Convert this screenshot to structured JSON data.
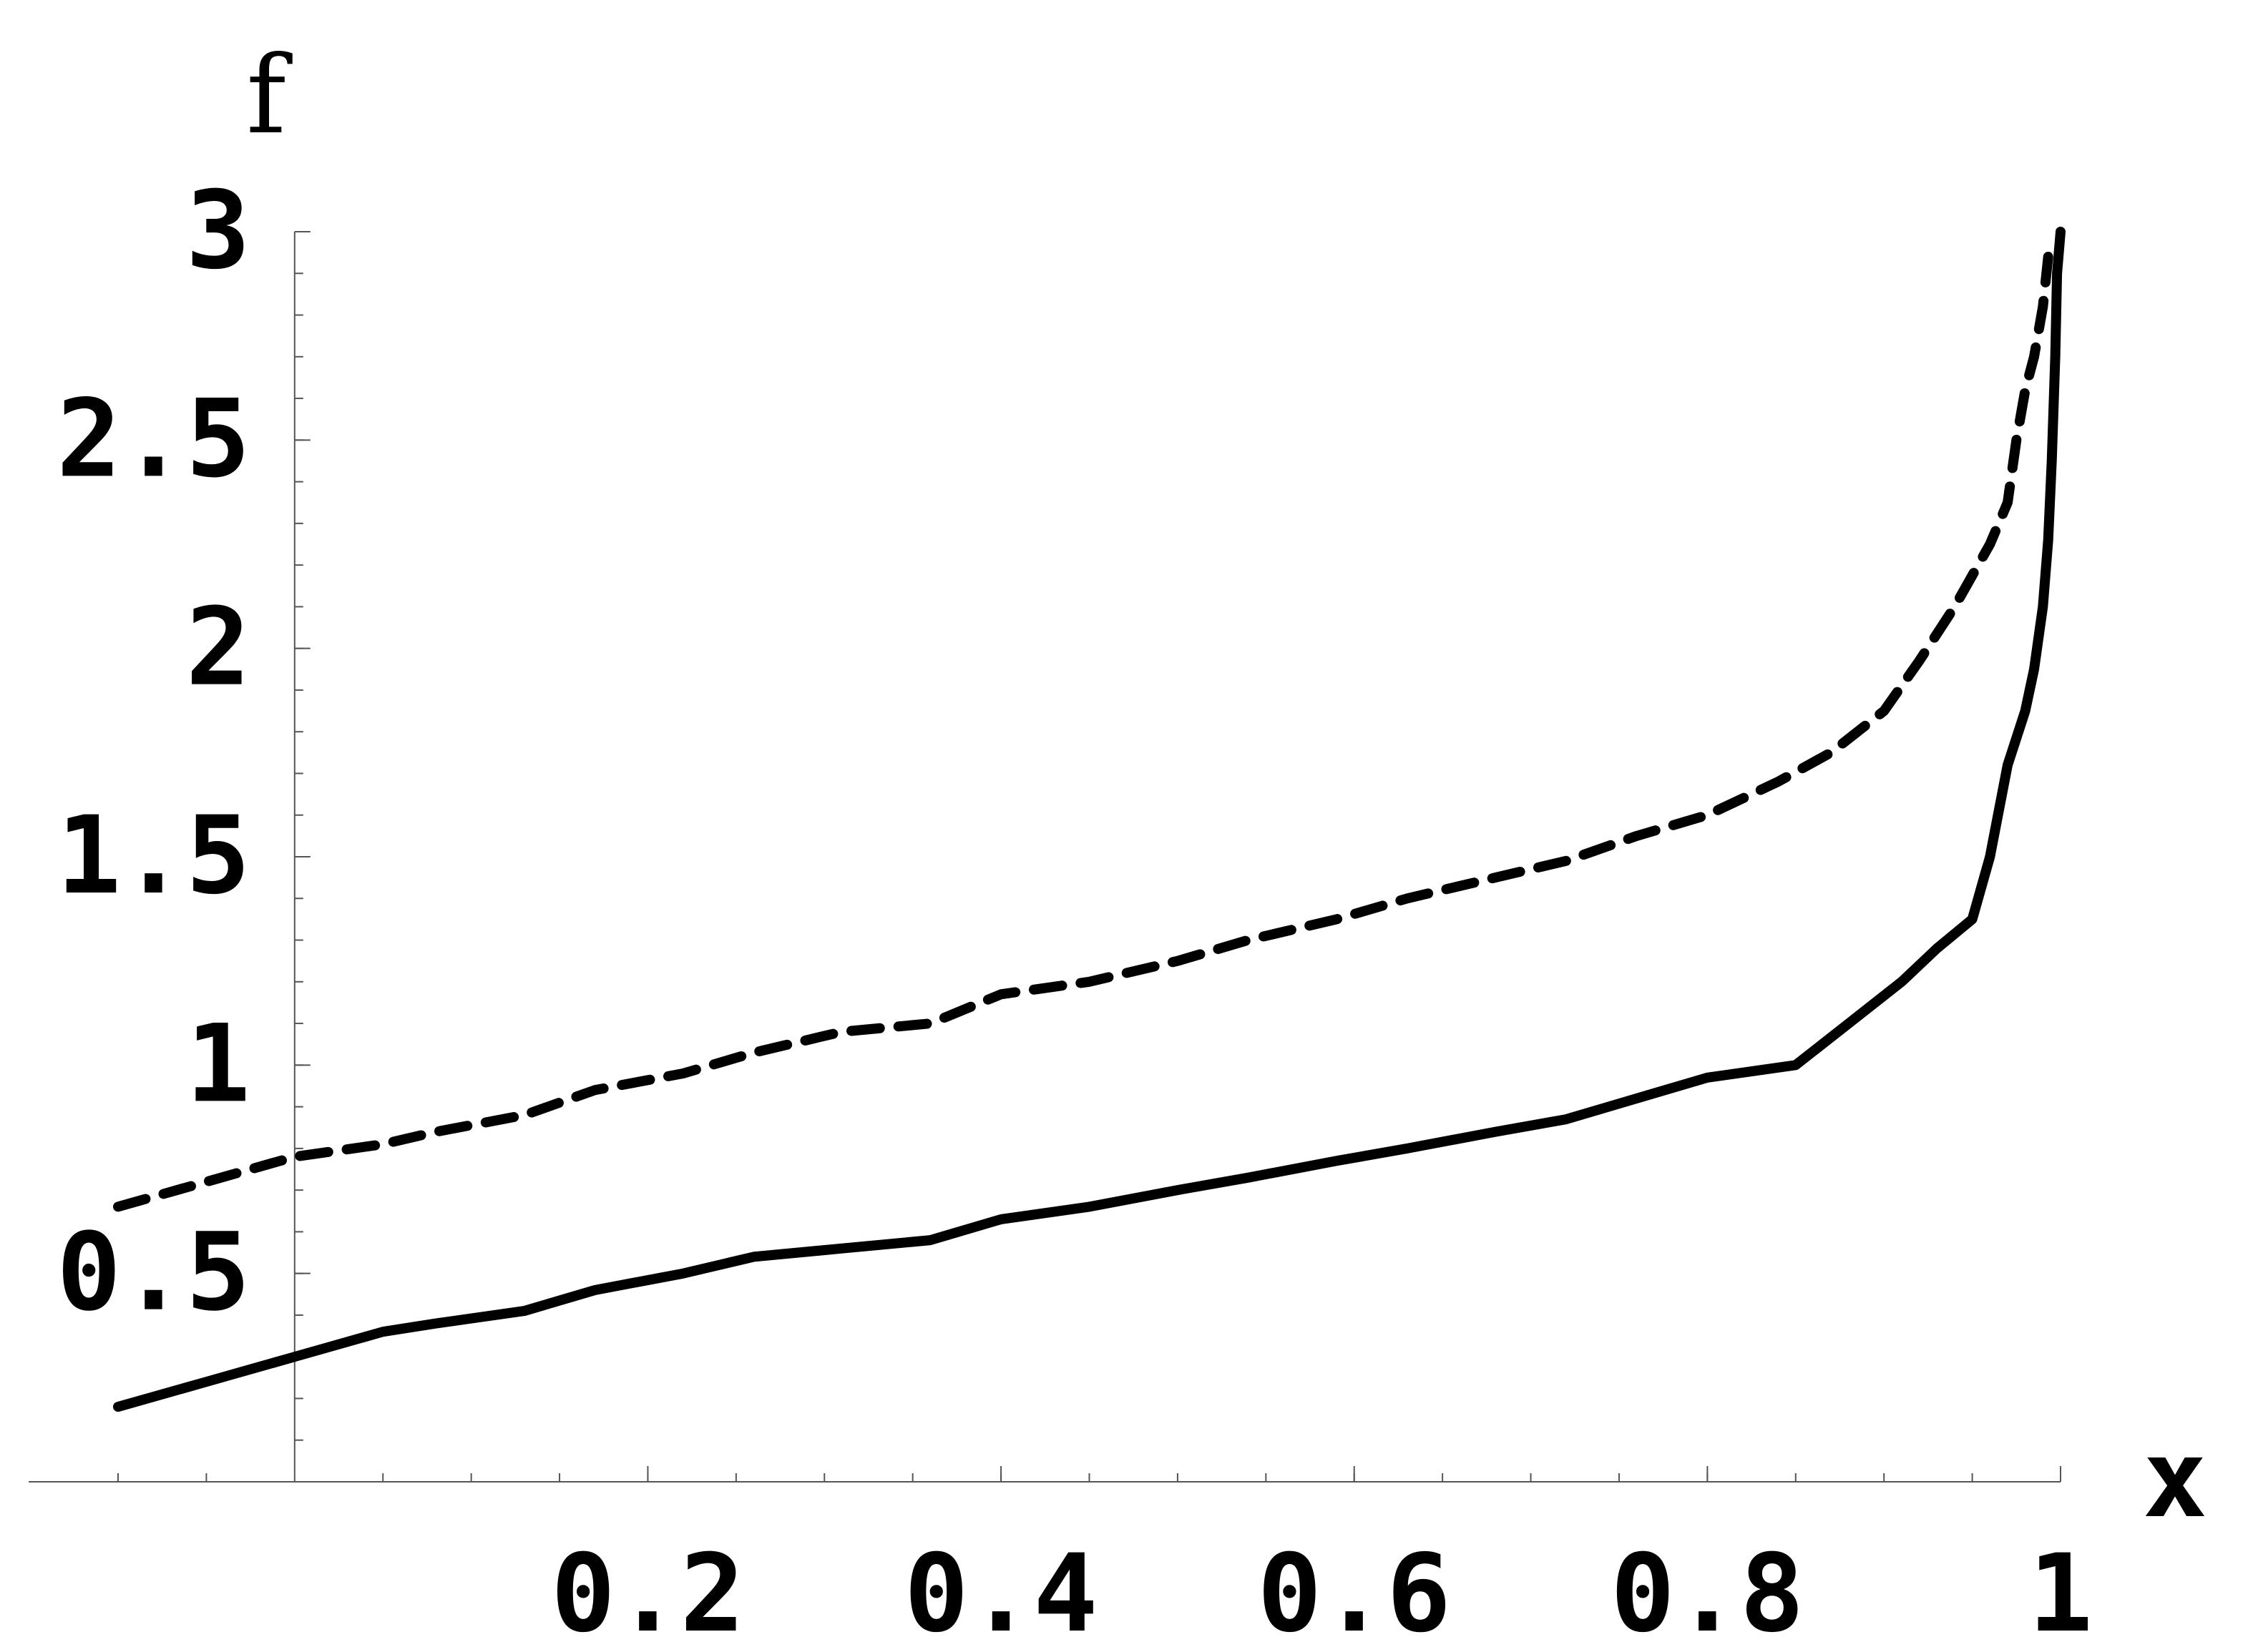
{
  "chart_data": {
    "type": "line",
    "title": "",
    "xlabel": "x",
    "ylabel": "f",
    "xlim": [
      -0.1,
      1.0
    ],
    "ylim": [
      0.0,
      3.0
    ],
    "x_ticks": [
      0.2,
      0.4,
      0.6,
      0.8,
      1.0
    ],
    "x_tick_labels": [
      "0.2",
      "0.4",
      "0.6",
      "0.8",
      "1"
    ],
    "y_ticks": [
      0.5,
      1.0,
      1.5,
      2.0,
      2.5,
      3.0
    ],
    "y_tick_labels": [
      "0.5",
      "1",
      "1.5",
      "2",
      "2.5",
      "3"
    ],
    "grid": false,
    "legend": "none",
    "series": [
      {
        "style": "solid",
        "color": "#000000",
        "x": [
          -0.1,
          -0.05,
          0.0,
          0.05,
          0.08,
          0.13,
          0.17,
          0.22,
          0.26,
          0.31,
          0.36,
          0.4,
          0.45,
          0.5,
          0.54,
          0.59,
          0.63,
          0.68,
          0.72,
          0.76,
          0.8,
          0.85,
          0.88,
          0.91,
          0.93,
          0.95,
          0.96,
          0.97,
          0.98,
          0.985,
          0.99,
          0.993,
          0.995,
          0.997,
          0.998,
          1.0
        ],
        "y": [
          0.18,
          0.24,
          0.3,
          0.36,
          0.38,
          0.41,
          0.46,
          0.5,
          0.54,
          0.56,
          0.58,
          0.63,
          0.66,
          0.7,
          0.73,
          0.77,
          0.8,
          0.84,
          0.87,
          0.92,
          0.97,
          1.0,
          1.1,
          1.2,
          1.28,
          1.35,
          1.5,
          1.72,
          1.85,
          1.95,
          2.1,
          2.26,
          2.45,
          2.7,
          2.9,
          3.0
        ]
      },
      {
        "style": "dashed",
        "color": "#000000",
        "x": [
          -0.1,
          -0.05,
          0.0,
          0.05,
          0.08,
          0.13,
          0.17,
          0.22,
          0.26,
          0.31,
          0.36,
          0.4,
          0.45,
          0.5,
          0.54,
          0.59,
          0.63,
          0.68,
          0.72,
          0.76,
          0.8,
          0.84,
          0.87,
          0.9,
          0.92,
          0.94,
          0.96,
          0.97,
          0.975,
          0.98,
          0.985,
          0.99,
          0.993
        ],
        "y": [
          0.66,
          0.72,
          0.78,
          0.81,
          0.84,
          0.88,
          0.94,
          0.98,
          1.03,
          1.08,
          1.1,
          1.17,
          1.2,
          1.25,
          1.3,
          1.35,
          1.4,
          1.45,
          1.49,
          1.55,
          1.6,
          1.68,
          1.75,
          1.85,
          1.97,
          2.1,
          2.25,
          2.35,
          2.5,
          2.62,
          2.7,
          2.82,
          2.94
        ]
      }
    ]
  }
}
